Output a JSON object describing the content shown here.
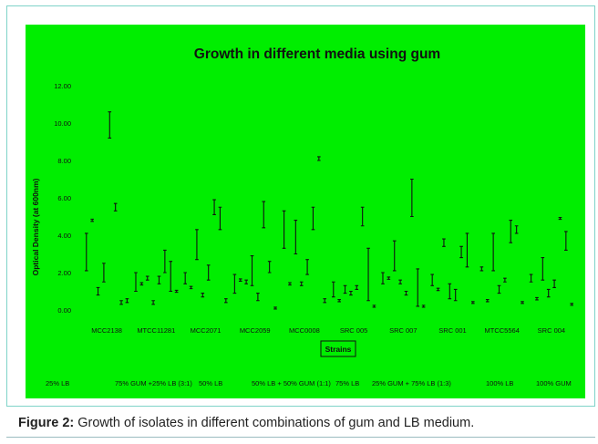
{
  "figure": {
    "caption_label": "Figure 2:",
    "caption_text": " Growth of isolates in different combinations of gum and LB medium."
  },
  "colors": {
    "plot_background": "#00ee00",
    "ink": "#111111",
    "frame_border": "#7fd3c9"
  },
  "chart_data": {
    "type": "scatter",
    "title": "Growth in different media using gum",
    "xlabel": "Strains",
    "ylabel": "Optical Density (at 600nm)",
    "ylim": [
      0,
      12
    ],
    "yticks": [
      "0.00",
      "2.00",
      "4.00",
      "6.00",
      "8.00",
      "10.00",
      "12.00"
    ],
    "grid": false,
    "error_bars": true,
    "legend_position": "bottom",
    "categories": [
      "MCC2138",
      "MTCC11281",
      "MCC2071",
      "MCC2059",
      "MCC0008",
      "SRC 005",
      "SRC 007",
      "SRC 001",
      "MTCC5564",
      "SRC 004"
    ],
    "media": [
      "25% LB",
      "75% GUM +25% LB (3:1)",
      "50% LB",
      "50% LB + 50% GUM (1:1)",
      "75% LB",
      "25% GUM + 75% LB (1:3)",
      "100% LB",
      "100% GUM"
    ],
    "series": [
      {
        "name": "25% LB",
        "values": [
          3.1,
          1.5,
          1.7,
          1.4,
          4.3,
          1.1,
          1.7,
          1.6,
          2.2,
          1.7
        ],
        "errors": [
          1.0,
          0.5,
          0.3,
          0.5,
          1.0,
          0.4,
          0.3,
          0.3,
          0.1,
          0.2
        ]
      },
      {
        "name": "75% GUM +25% LB (3:1)",
        "values": [
          4.8,
          1.4,
          1.2,
          1.6,
          1.4,
          0.5,
          1.7,
          1.1,
          0.5,
          0.6
        ]
      },
      {
        "name": "50% LB",
        "values": [
          1.0,
          1.7,
          3.5,
          1.5,
          3.9,
          1.1,
          2.9,
          3.6,
          3.1,
          2.2
        ],
        "errors": [
          0.2,
          0.1,
          0.8,
          0.1,
          0.9,
          0.2,
          0.8,
          0.2,
          1.0,
          0.6
        ]
      },
      {
        "name": "50% LB + 50% GUM (1:1)",
        "values": [
          2.0,
          0.4,
          0.8,
          2.1,
          1.4,
          0.9,
          1.5,
          1.0,
          1.1,
          0.9
        ],
        "errors": [
          0.5,
          0.1,
          0.1,
          0.8,
          0.1,
          0.1,
          0.1,
          0.4,
          0.2,
          0.2
        ]
      },
      {
        "name": "75% LB",
        "values": [
          9.9,
          1.6,
          2.0,
          0.7,
          2.3,
          1.2,
          0.9,
          0.8,
          1.6,
          1.4
        ],
        "errors": [
          0.7,
          0.2,
          0.4,
          0.2,
          0.4,
          0.1,
          0.1,
          0.3,
          0.1,
          0.2
        ]
      },
      {
        "name": "25% GUM + 75% LB (1:3)",
        "values": [
          5.5,
          2.6,
          5.5,
          5.1,
          4.9,
          5.0,
          6.0,
          3.1,
          4.2,
          4.9
        ],
        "errors": [
          0.2,
          0.6,
          0.4,
          0.7,
          0.6,
          0.5,
          1.0,
          0.3,
          0.6,
          0.05
        ]
      },
      {
        "name": "100% LB",
        "values": [
          0.4,
          1.8,
          4.9,
          2.3,
          8.1,
          1.9,
          1.2,
          3.2,
          4.3,
          3.7
        ],
        "errors": [
          0.1,
          0.8,
          0.6,
          0.3,
          0.1,
          1.4,
          1.0,
          0.9,
          0.2,
          0.5
        ]
      },
      {
        "name": "100% GUM",
        "values": [
          0.5,
          1.0,
          0.5,
          0.1,
          0.5,
          0.2,
          0.2,
          0.4,
          0.4,
          0.3
        ],
        "errors": [
          0.1,
          0.05,
          0.1,
          0.05,
          0.1,
          0.05,
          0.05,
          0.05,
          0.05,
          0.05
        ]
      }
    ]
  }
}
